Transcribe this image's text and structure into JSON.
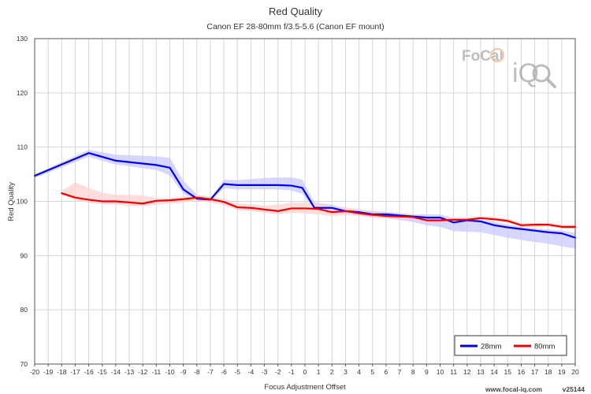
{
  "chart_data": {
    "type": "line",
    "title": "Red Quality",
    "subtitle": "Canon EF 28-80mm f/3.5-5.6 (Canon EF mount)",
    "xlabel": "Focus Adjustment Offset",
    "ylabel": "Red Quality",
    "xlim": [
      -20,
      20
    ],
    "ylim": [
      70,
      130
    ],
    "x_ticks": [
      -20,
      -19,
      -18,
      -17,
      -16,
      -15,
      -14,
      -13,
      -12,
      -11,
      -10,
      -9,
      -8,
      -7,
      -6,
      -5,
      -4,
      -3,
      -2,
      -1,
      0,
      1,
      2,
      3,
      4,
      5,
      6,
      7,
      8,
      9,
      10,
      11,
      12,
      13,
      14,
      15,
      16,
      17,
      18,
      19,
      20
    ],
    "y_ticks": [
      70,
      80,
      90,
      100,
      110,
      120,
      130
    ],
    "grid": true,
    "legend_position": "bottom-right",
    "series": [
      {
        "name": "28mm",
        "color": "#0000ee",
        "band_color": "#c8c8ff",
        "x": [
          -20,
          -16,
          -14,
          -11,
          -10,
          -9,
          -8,
          -7,
          -6,
          -5,
          -4,
          -3,
          -2,
          -1,
          -0.2,
          0.7,
          2,
          3,
          4,
          5,
          6,
          8,
          9,
          10,
          11,
          12,
          13,
          14,
          15,
          16,
          17,
          18,
          19,
          20
        ],
        "values": [
          104.7,
          108.9,
          107.5,
          106.7,
          106.2,
          102.2,
          100.5,
          100.3,
          103.2,
          103.0,
          103.0,
          103.0,
          103.0,
          102.9,
          102.5,
          98.8,
          98.8,
          98.2,
          98.0,
          97.6,
          97.6,
          97.2,
          97.0,
          97.0,
          96.1,
          96.5,
          96.3,
          95.6,
          95.2,
          94.9,
          94.6,
          94.3,
          94.1,
          93.3
        ],
        "band_low": [
          104.3,
          108.2,
          106.8,
          105.8,
          104.8,
          101.4,
          100.2,
          100.1,
          102.4,
          102.2,
          102.2,
          102.2,
          102.2,
          102.0,
          101.4,
          98.4,
          98.3,
          97.8,
          97.5,
          97.0,
          96.9,
          96.2,
          95.6,
          95.3,
          94.5,
          94.4,
          94.3,
          93.8,
          93.3,
          92.9,
          92.5,
          92.2,
          91.7,
          91.3
        ],
        "band_high": [
          105.0,
          109.5,
          108.6,
          108.3,
          108.0,
          103.8,
          101.2,
          100.6,
          104.0,
          103.9,
          104.1,
          104.3,
          104.4,
          104.4,
          104.0,
          99.8,
          99.4,
          98.7,
          98.5,
          98.2,
          98.1,
          97.6,
          97.6,
          97.6,
          96.9,
          97.0,
          96.7,
          96.2,
          95.7,
          95.3,
          95.0,
          94.8,
          94.6,
          94.2
        ]
      },
      {
        "name": "80mm",
        "color": "#ee0000",
        "band_color": "#ffd2d2",
        "x": [
          -18,
          -17,
          -16,
          -15,
          -14,
          -13,
          -12,
          -11,
          -10,
          -9,
          -8,
          -7,
          -6,
          -5,
          -4,
          -3,
          -2,
          -1,
          0,
          1,
          2,
          3,
          4,
          5,
          6,
          7,
          8,
          9,
          10,
          11,
          12,
          13,
          14,
          15,
          16,
          17,
          18,
          19,
          20
        ],
        "values": [
          101.5,
          100.7,
          100.3,
          100.0,
          100.0,
          99.8,
          99.6,
          100.1,
          100.2,
          100.4,
          100.7,
          100.4,
          99.9,
          98.9,
          98.8,
          98.5,
          98.2,
          98.7,
          98.7,
          98.6,
          98.0,
          98.2,
          97.8,
          97.5,
          97.3,
          97.2,
          97.1,
          96.5,
          96.5,
          96.6,
          96.6,
          96.9,
          96.7,
          96.4,
          95.6,
          95.7,
          95.7,
          95.3,
          95.3
        ],
        "band_low": [
          101.2,
          100.2,
          99.7,
          99.5,
          99.4,
          99.2,
          99.1,
          99.4,
          99.6,
          99.8,
          100.1,
          99.8,
          99.3,
          98.4,
          98.2,
          97.9,
          97.6,
          97.9,
          97.8,
          97.6,
          97.3,
          97.5,
          97.3,
          97.1,
          97.0,
          96.9,
          96.8,
          96.1,
          96.1,
          96.2,
          96.2,
          96.5,
          96.4,
          96.1,
          95.3,
          95.3,
          95.4,
          95.0,
          95.0
        ],
        "band_high": [
          101.9,
          103.5,
          102.5,
          101.6,
          101.2,
          101.2,
          101.1,
          100.6,
          100.6,
          100.9,
          101.2,
          100.9,
          100.5,
          99.6,
          99.5,
          99.2,
          99.4,
          99.8,
          99.8,
          99.7,
          99.0,
          98.9,
          98.5,
          97.9,
          97.8,
          97.6,
          97.5,
          97.0,
          96.9,
          97.0,
          97.0,
          97.3,
          97.1,
          96.8,
          96.0,
          96.0,
          96.1,
          95.7,
          95.7
        ]
      }
    ]
  },
  "logo": {
    "brand": "FoCal",
    "suffix": "iQ"
  },
  "footer": {
    "site": "www.focal-iq.com",
    "version": "v25144"
  }
}
